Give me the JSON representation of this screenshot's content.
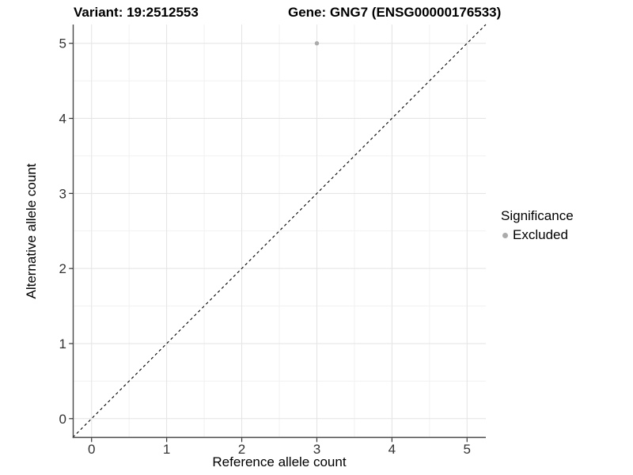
{
  "figure": {
    "title_left": "Variant: 19:2512553",
    "title_right": "Gene: GNG7 (ENSG00000176533)"
  },
  "chart_data": {
    "type": "scatter",
    "title": "Variant: 19:2512553   Gene: GNG7 (ENSG00000176533)",
    "xlabel": "Reference allele count",
    "ylabel": "Alternative allele count",
    "xlim": [
      -0.25,
      5.25
    ],
    "ylim": [
      -0.25,
      5.25
    ],
    "x_ticks": [
      0,
      1,
      2,
      3,
      4,
      5
    ],
    "y_ticks": [
      0,
      1,
      2,
      3,
      4,
      5
    ],
    "x_minor_ticks": [
      0.5,
      1.5,
      2.5,
      3.5,
      4.5
    ],
    "y_minor_ticks": [
      0.5,
      1.5,
      2.5,
      3.5,
      4.5
    ],
    "grid": "major-and-minor",
    "reference_line": {
      "type": "identity-y-equals-x",
      "style": "dashed",
      "color": "#000000"
    },
    "series": [
      {
        "name": "Excluded",
        "color": "#ababab",
        "points": [
          {
            "x": 3,
            "y": 5
          }
        ]
      }
    ],
    "legend": {
      "title": "Significance",
      "position": "right",
      "items": [
        {
          "label": "Excluded",
          "color": "#ababab"
        }
      ]
    },
    "colors": {
      "background": "#ffffff",
      "grid_major": "#e3e3e3",
      "grid_minor": "#f1f1f1",
      "axis_line": "#474747",
      "tick_mark": "#333333",
      "tick_label": "#333333",
      "point": "#ababab"
    }
  }
}
